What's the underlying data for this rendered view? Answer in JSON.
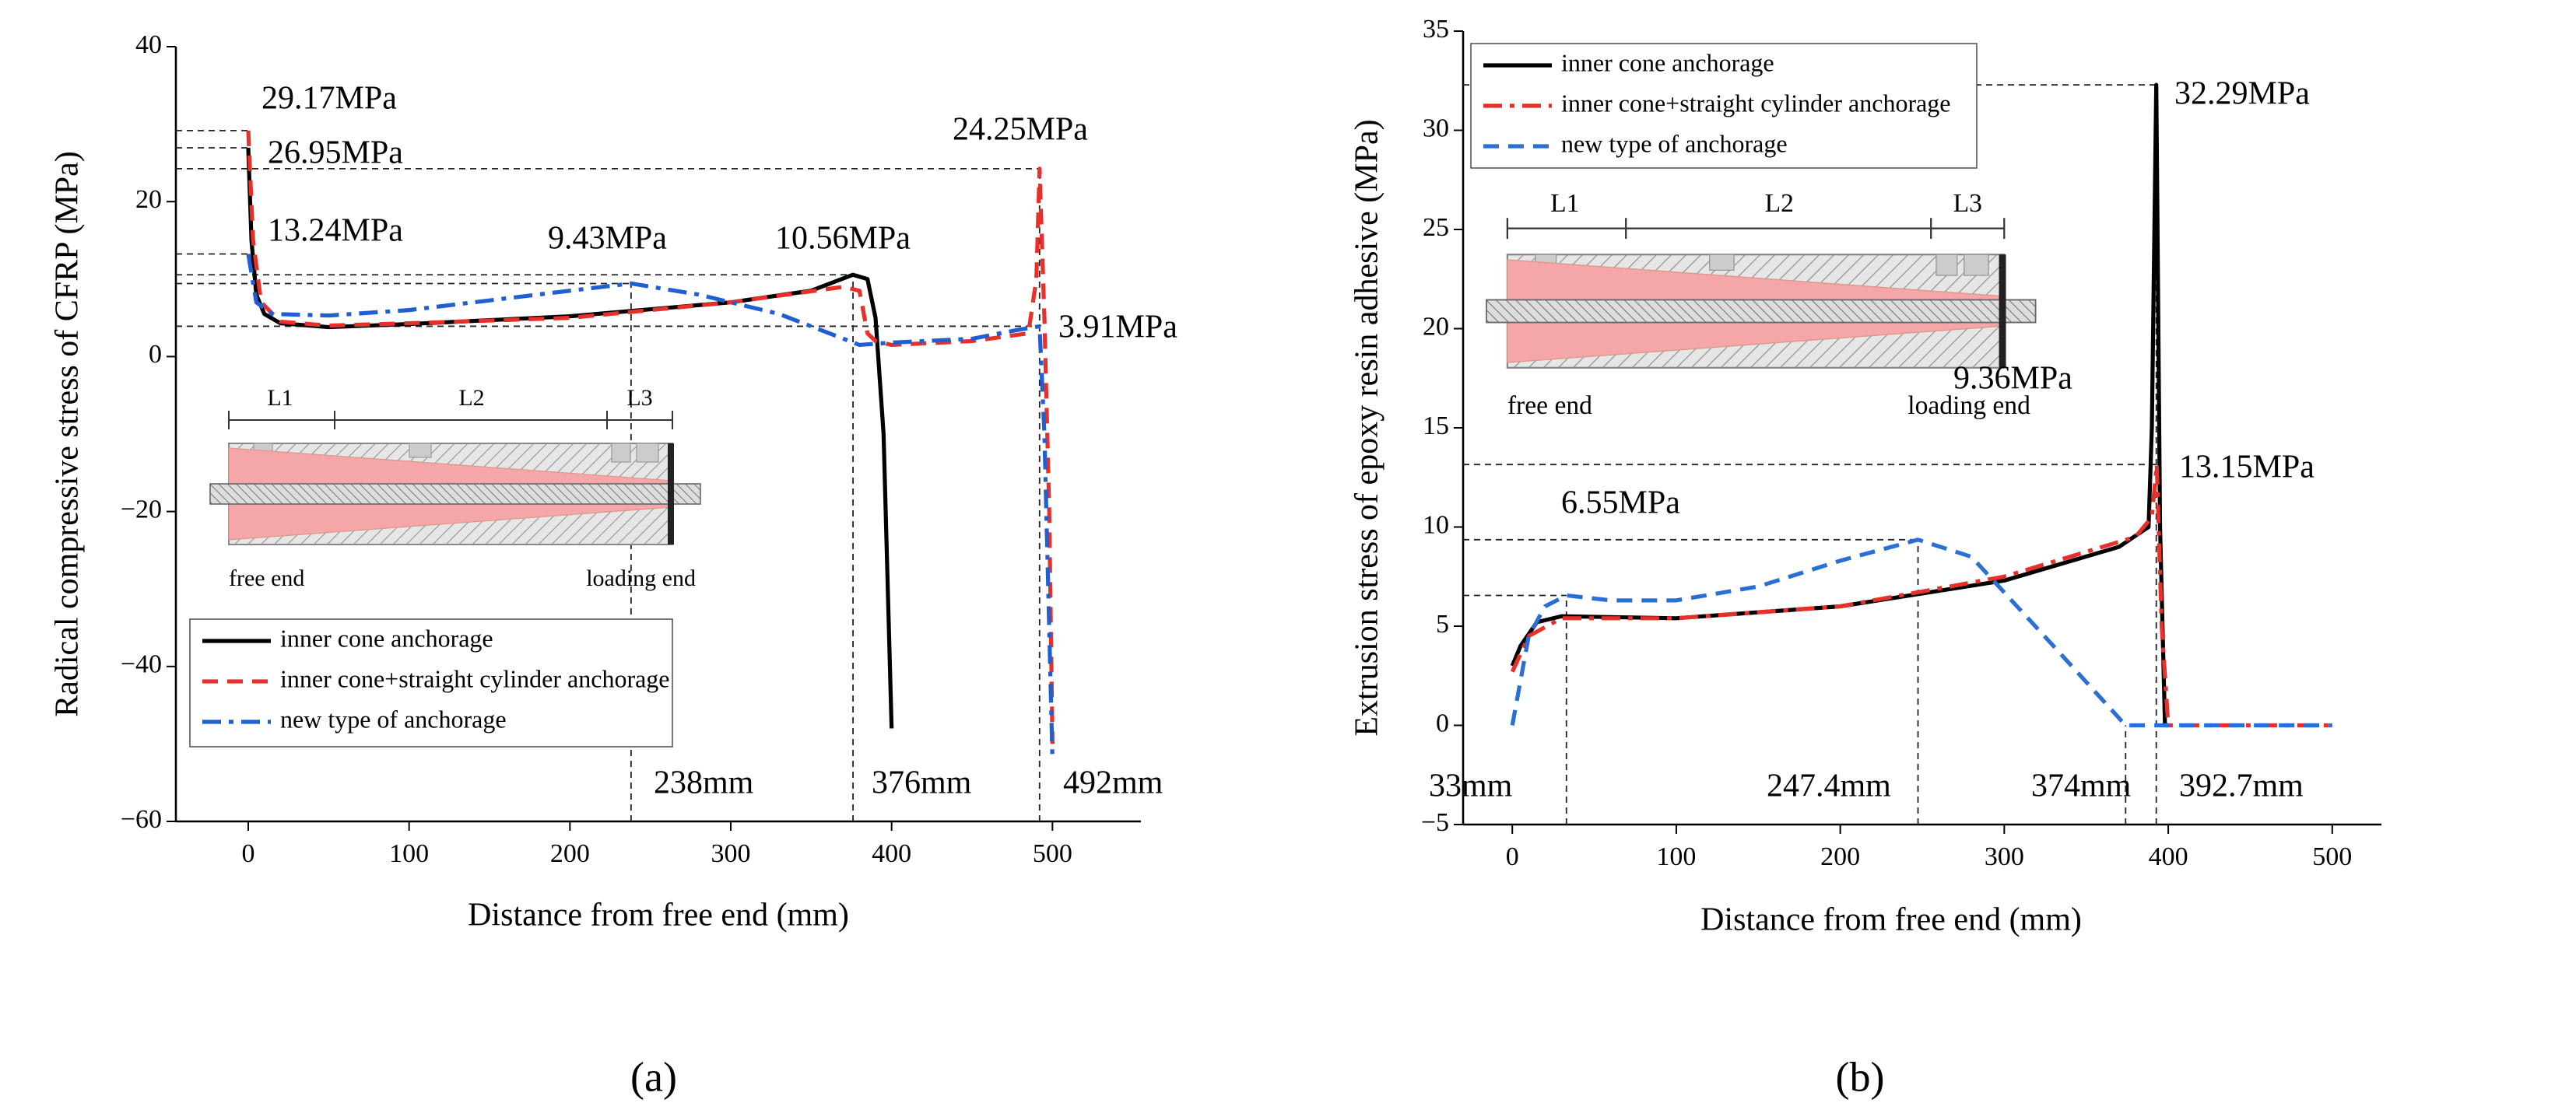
{
  "chart_data": [
    {
      "type": "line",
      "panel": "(a)",
      "xlabel": "Distance from free end (mm)",
      "ylabel": "Radical compressive stress of CFRP (MPa)",
      "xlim": [
        -45,
        555
      ],
      "ylim": [
        -60,
        40
      ],
      "xticks": [
        0,
        100,
        200,
        300,
        400,
        500
      ],
      "yticks": [
        {
          "value": -60,
          "label": "−60"
        },
        {
          "value": -40,
          "label": "−40"
        },
        {
          "value": -20,
          "label": "−20"
        },
        0,
        20,
        40
      ],
      "series": [
        {
          "name": "inner cone anchorage",
          "color": "#000000",
          "dash": "solid",
          "x": [
            0,
            2,
            5,
            10,
            20,
            50,
            100,
            200,
            300,
            350,
            376,
            385,
            390,
            395,
            400
          ],
          "values": [
            26.95,
            15,
            8,
            5.5,
            4.3,
            3.8,
            4.2,
            5.2,
            7,
            8.5,
            10.56,
            10,
            5,
            -10,
            -48
          ]
        },
        {
          "name": "inner cone+straight cylinder anchorage",
          "color": "#e8302a",
          "dash": "dashed",
          "x": [
            0,
            3,
            8,
            20,
            50,
            100,
            200,
            300,
            370,
            380,
            385,
            390,
            400,
            450,
            485,
            490,
            492,
            495,
            498,
            500
          ],
          "values": [
            29.17,
            15,
            7,
            4.5,
            4,
            4.3,
            5,
            7,
            9,
            8.5,
            3,
            2,
            1.5,
            2,
            3,
            10,
            24.25,
            5,
            -20,
            -50
          ]
        },
        {
          "name": "new type of anchorage",
          "color": "#1f5fd1",
          "dash": "dashdot",
          "x": [
            0,
            5,
            15,
            50,
            100,
            200,
            238,
            280,
            330,
            380,
            400,
            450,
            480,
            492,
            495,
            500
          ],
          "values": [
            13.24,
            7,
            5.5,
            5.3,
            6,
            8.5,
            9.43,
            8,
            5.5,
            1.5,
            1.8,
            2.3,
            3.5,
            3.91,
            -10,
            -52
          ]
        }
      ],
      "annotations": [
        {
          "text": "29.17MPa",
          "x": 0,
          "y": 29.17,
          "color": "#e8302a",
          "guide": "horizontal"
        },
        {
          "text": "26.95MPa",
          "x": 0,
          "y": 26.95,
          "color": "#000000",
          "guide": "horizontal"
        },
        {
          "text": "13.24MPa",
          "x": 0,
          "y": 13.24,
          "color": "#1f5fd1",
          "guide": "horizontal"
        },
        {
          "text": "9.43MPa",
          "x": 238,
          "y": 9.43,
          "color": "#1f5fd1",
          "guide": "horizontal"
        },
        {
          "text": "10.56MPa",
          "x": 376,
          "y": 10.56,
          "color": "#000000",
          "guide": "horizontal"
        },
        {
          "text": "24.25MPa",
          "x": 492,
          "y": 24.25,
          "color": "#e8302a",
          "guide": "horizontal"
        },
        {
          "text": "3.91MPa",
          "x": 492,
          "y": 3.91,
          "color": "#1f5fd1",
          "guide": "horizontal"
        },
        {
          "text": "238mm",
          "x": 238,
          "y": 9.43,
          "color": "#1f5fd1",
          "guide": "vertical"
        },
        {
          "text": "376mm",
          "x": 376,
          "y": 10.56,
          "color": "#000000",
          "guide": "vertical"
        },
        {
          "text": "492mm",
          "x": 492,
          "y": 24.25,
          "color": "#e8302a",
          "guide": "vertical"
        }
      ],
      "inset": {
        "segments": [
          "L1",
          "L2",
          "L3"
        ],
        "left": "free end",
        "right": "loading end"
      }
    },
    {
      "type": "line",
      "panel": "(b)",
      "xlabel": "Distance from free end (mm)",
      "ylabel": "Extrusion stress of epoxy resin adhesive (MPa)",
      "xlim": [
        -30,
        530
      ],
      "ylim": [
        -5,
        35
      ],
      "xticks": [
        0,
        100,
        200,
        300,
        400,
        500
      ],
      "yticks": [
        {
          "value": -5,
          "label": "−5"
        },
        0,
        5,
        10,
        15,
        20,
        25,
        30,
        35
      ],
      "series": [
        {
          "name": "inner cone anchorage",
          "color": "#000000",
          "dash": "solid",
          "x": [
            0,
            5,
            15,
            30,
            100,
            200,
            300,
            370,
            388,
            390,
            392.7,
            395,
            398,
            400
          ],
          "values": [
            3,
            4,
            5.2,
            5.5,
            5.4,
            6,
            7.3,
            9,
            10,
            15,
            32.29,
            10,
            0,
            0
          ]
        },
        {
          "name": "inner cone+straight cylinder anchorage",
          "color": "#e8302a",
          "dash": "dashdot",
          "x": [
            0,
            10,
            30,
            100,
            200,
            300,
            380,
            390,
            393,
            396,
            400,
            500
          ],
          "values": [
            2.7,
            4.5,
            5.4,
            5.4,
            6,
            7.5,
            9.5,
            10.5,
            13.15,
            5,
            0,
            0
          ]
        },
        {
          "name": "new type of anchorage",
          "color": "#2a6fd6",
          "dash": "dashed",
          "x": [
            0,
            10,
            20,
            33,
            60,
            100,
            150,
            200,
            247.4,
            280,
            330,
            374,
            500
          ],
          "values": [
            0,
            4.5,
            6,
            6.55,
            6.3,
            6.3,
            7,
            8.3,
            9.36,
            8.5,
            4,
            0,
            0
          ]
        }
      ],
      "annotations": [
        {
          "text": "32.29MPa",
          "x": 392.7,
          "y": 32.29,
          "color": "#000000",
          "guide": "horizontal"
        },
        {
          "text": "13.15MPa",
          "x": 393,
          "y": 13.15,
          "color": "#e8302a",
          "guide": "horizontal"
        },
        {
          "text": "9.36MPa",
          "x": 247.4,
          "y": 9.36,
          "color": "#2a6fd6",
          "guide": "horizontal"
        },
        {
          "text": "6.55MPa",
          "x": 33,
          "y": 6.55,
          "color": "#2a6fd6",
          "guide": "horizontal"
        },
        {
          "text": "33mm",
          "x": 33,
          "y": 6.55,
          "color": "#2a6fd6",
          "guide": "vertical"
        },
        {
          "text": "247.4mm",
          "x": 247.4,
          "y": 9.36,
          "color": "#2a6fd6",
          "guide": "vertical"
        },
        {
          "text": "374mm",
          "x": 374,
          "y": 0,
          "color": "#2a6fd6",
          "guide": "vertical"
        },
        {
          "text": "392.7mm",
          "x": 392.7,
          "y": 32.29,
          "color": "#000000",
          "guide": "vertical"
        }
      ],
      "inset": {
        "segments": [
          "L1",
          "L2",
          "L3"
        ],
        "left": "free end",
        "right": "loading end"
      }
    }
  ]
}
